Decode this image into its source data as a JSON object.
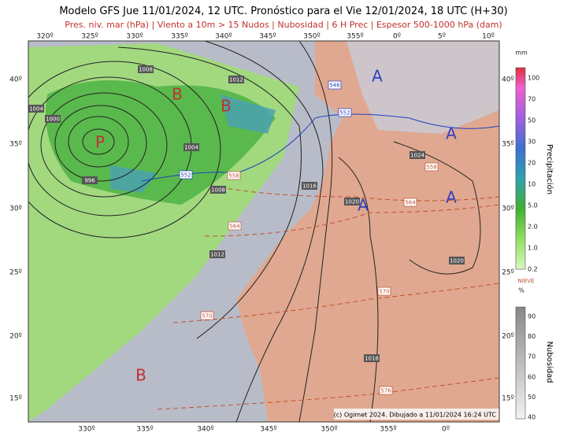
{
  "header": {
    "title_prefix": "Modelo GFS Jue 11/01/2024, 12 UTC. Pronóstico para el",
    "title_highlight": "Vie 12/01/2024, 18 UTC",
    "title_suffix": "(H+30)",
    "subtitle": "Pres. niv. mar (hPa) | Viento a 10m > 15 Nudos | Nubosidad | 6 H Prec | Espesor 500-1000 hPa (dam)"
  },
  "map": {
    "lon_top": [
      "320º",
      "325º",
      "330º",
      "335º",
      "340º",
      "345º",
      "350º",
      "355º",
      "0º",
      "5º",
      "10º"
    ],
    "lon_bottom": [
      "330º",
      "335º",
      "340º",
      "345º",
      "350º",
      "355º",
      "0º"
    ],
    "lat_left": [
      "40º",
      "35º",
      "30º",
      "25º",
      "20º",
      "15º"
    ],
    "lat_right": [
      "40º",
      "35º",
      "30º",
      "25º",
      "20º",
      "15º"
    ],
    "pressure_labels": [
      "1008",
      "1012",
      "1004",
      "1000",
      "996",
      "1004",
      "1008",
      "1012",
      "1016",
      "1020",
      "1024",
      "1020",
      "1016"
    ],
    "thickness_labels": [
      "546",
      "552",
      "552",
      "558",
      "558",
      "564",
      "564",
      "570",
      "570",
      "576"
    ],
    "centers": [
      "A",
      "A",
      "A",
      "A",
      "B",
      "B",
      "P",
      "B"
    ],
    "credit": "(c) Ogimet 2024. Dibujado a 11/01/2024 16:24 UTC"
  },
  "legend": {
    "precip_unit": "mm",
    "precip_title": "Precipitación",
    "precip_labels": [
      "100",
      "70",
      "50",
      "30",
      "20",
      "10",
      "5.0",
      "2.0",
      "1.0",
      "0.2"
    ],
    "snow": "NIEVE",
    "cloud_unit": "%",
    "cloud_title": "Nubosidad",
    "cloud_labels": [
      "90",
      "80",
      "70",
      "60",
      "50",
      "40"
    ]
  }
}
